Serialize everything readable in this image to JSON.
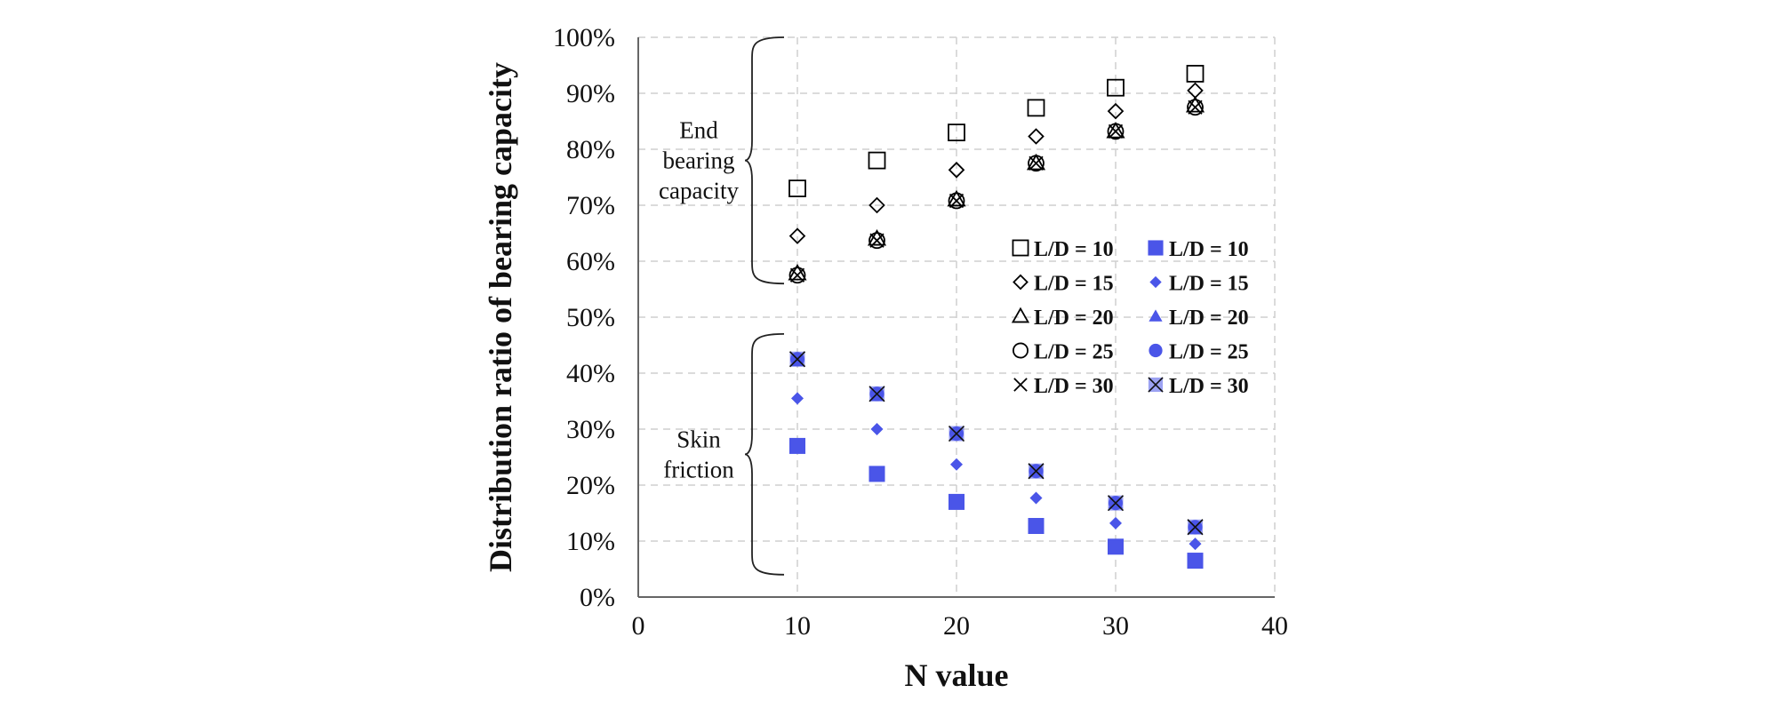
{
  "chart_data": {
    "type": "scatter",
    "title": "",
    "xlabel": "N value",
    "ylabel": "Distribution ratio of bearing capacity",
    "xlim": [
      0,
      40
    ],
    "ylim": [
      0,
      1
    ],
    "xticks": [
      0,
      10,
      20,
      30,
      40
    ],
    "yticks": [
      0,
      0.1,
      0.2,
      0.3,
      0.4,
      0.5,
      0.6,
      0.7,
      0.8,
      0.9,
      1.0
    ],
    "x_tick_labels": [
      "0",
      "10",
      "20",
      "30",
      "40"
    ],
    "y_tick_labels": [
      "0%",
      "10%",
      "20%",
      "30%",
      "40%",
      "50%",
      "60%",
      "70%",
      "80%",
      "90%",
      "100%"
    ],
    "grid": true,
    "x": [
      10,
      15,
      20,
      25,
      30,
      35
    ],
    "annotations": [
      {
        "name": "end-bearing",
        "lines": [
          "End",
          "bearing",
          "capacity"
        ],
        "brace_range": [
          0.56,
          1.0
        ]
      },
      {
        "name": "skin-friction",
        "lines": [
          "Skin",
          "friction"
        ],
        "brace_range": [
          0.04,
          0.47
        ]
      }
    ],
    "legend_position": "right-center",
    "series": [
      {
        "name": "L/D = 10",
        "group": "end",
        "marker": "square-open",
        "color": "#000000",
        "values": [
          0.73,
          0.78,
          0.83,
          0.874,
          0.91,
          0.935
        ]
      },
      {
        "name": "L/D = 15",
        "group": "end",
        "marker": "diamond-open",
        "color": "#000000",
        "values": [
          0.645,
          0.7,
          0.763,
          0.823,
          0.868,
          0.905
        ]
      },
      {
        "name": "L/D = 20",
        "group": "end",
        "marker": "triangle-open",
        "color": "#000000",
        "values": [
          0.578,
          0.64,
          0.71,
          0.775,
          0.832,
          0.878
        ]
      },
      {
        "name": "L/D = 25",
        "group": "end",
        "marker": "circle-open",
        "color": "#000000",
        "values": [
          0.575,
          0.637,
          0.708,
          0.775,
          0.832,
          0.875
        ]
      },
      {
        "name": "L/D = 30",
        "group": "end",
        "marker": "x",
        "color": "#000000",
        "values": [
          0.575,
          0.637,
          0.708,
          0.775,
          0.832,
          0.875
        ]
      },
      {
        "name": "L/D = 10",
        "group": "skin",
        "marker": "square-filled",
        "color": "#4a55e8",
        "values": [
          0.27,
          0.22,
          0.17,
          0.127,
          0.09,
          0.065
        ]
      },
      {
        "name": "L/D = 15",
        "group": "skin",
        "marker": "diamond-filled",
        "color": "#4a55e8",
        "values": [
          0.355,
          0.3,
          0.237,
          0.177,
          0.132,
          0.095
        ]
      },
      {
        "name": "L/D = 20",
        "group": "skin",
        "marker": "triangle-filled",
        "color": "#4a55e8",
        "values": [
          0.422,
          0.36,
          0.29,
          0.225,
          0.168,
          0.122
        ]
      },
      {
        "name": "L/D = 25",
        "group": "skin",
        "marker": "circle-filled",
        "color": "#4a55e8",
        "values": [
          0.425,
          0.363,
          0.292,
          0.225,
          0.168,
          0.125
        ]
      },
      {
        "name": "L/D = 30",
        "group": "skin",
        "marker": "square-x",
        "color": "#4a55e8",
        "values": [
          0.425,
          0.363,
          0.292,
          0.225,
          0.168,
          0.125
        ]
      }
    ]
  }
}
